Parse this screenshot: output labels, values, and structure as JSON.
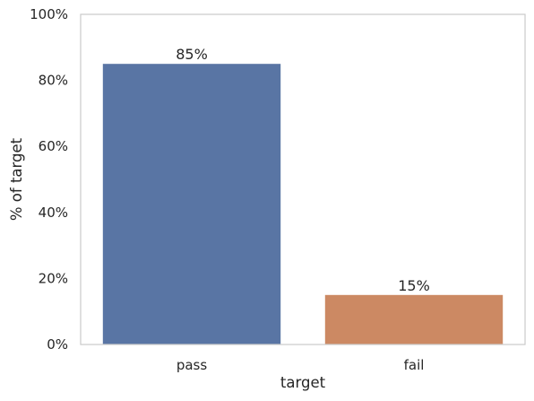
{
  "chart_data": {
    "type": "bar",
    "categories": [
      "pass",
      "fail"
    ],
    "values": [
      85,
      15
    ],
    "value_labels": [
      "85%",
      "15%"
    ],
    "colors": [
      "#5975a4",
      "#cc8963"
    ],
    "xlabel": "target",
    "ylabel": "% of target",
    "ylim": [
      0,
      100
    ],
    "yticks": [
      0,
      20,
      40,
      60,
      80,
      100
    ],
    "ytick_labels": [
      "0%",
      "20%",
      "40%",
      "60%",
      "80%",
      "100%"
    ],
    "grid": false,
    "legend": "none"
  }
}
